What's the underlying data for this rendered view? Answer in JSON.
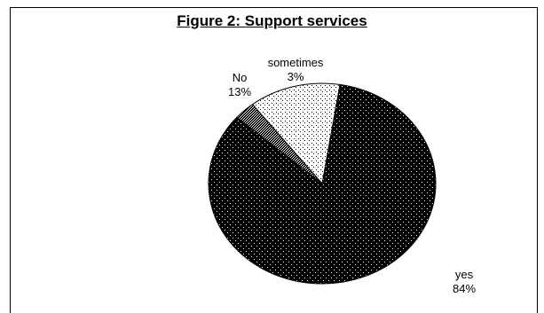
{
  "chart_data": {
    "type": "pie",
    "title": "Figure 2: Support services",
    "slices": [
      {
        "label": "yes",
        "value": 84,
        "display": "84%",
        "fill": "dark-dotted"
      },
      {
        "label": "sometimes",
        "value": 3,
        "display": "3%",
        "fill": "checker"
      },
      {
        "label": "No",
        "value": 13,
        "display": "13%",
        "fill": "light-dotted"
      }
    ],
    "legend": "none",
    "colors": {
      "dark": "#000000",
      "light": "#ffffff",
      "outline": "#000000"
    }
  }
}
